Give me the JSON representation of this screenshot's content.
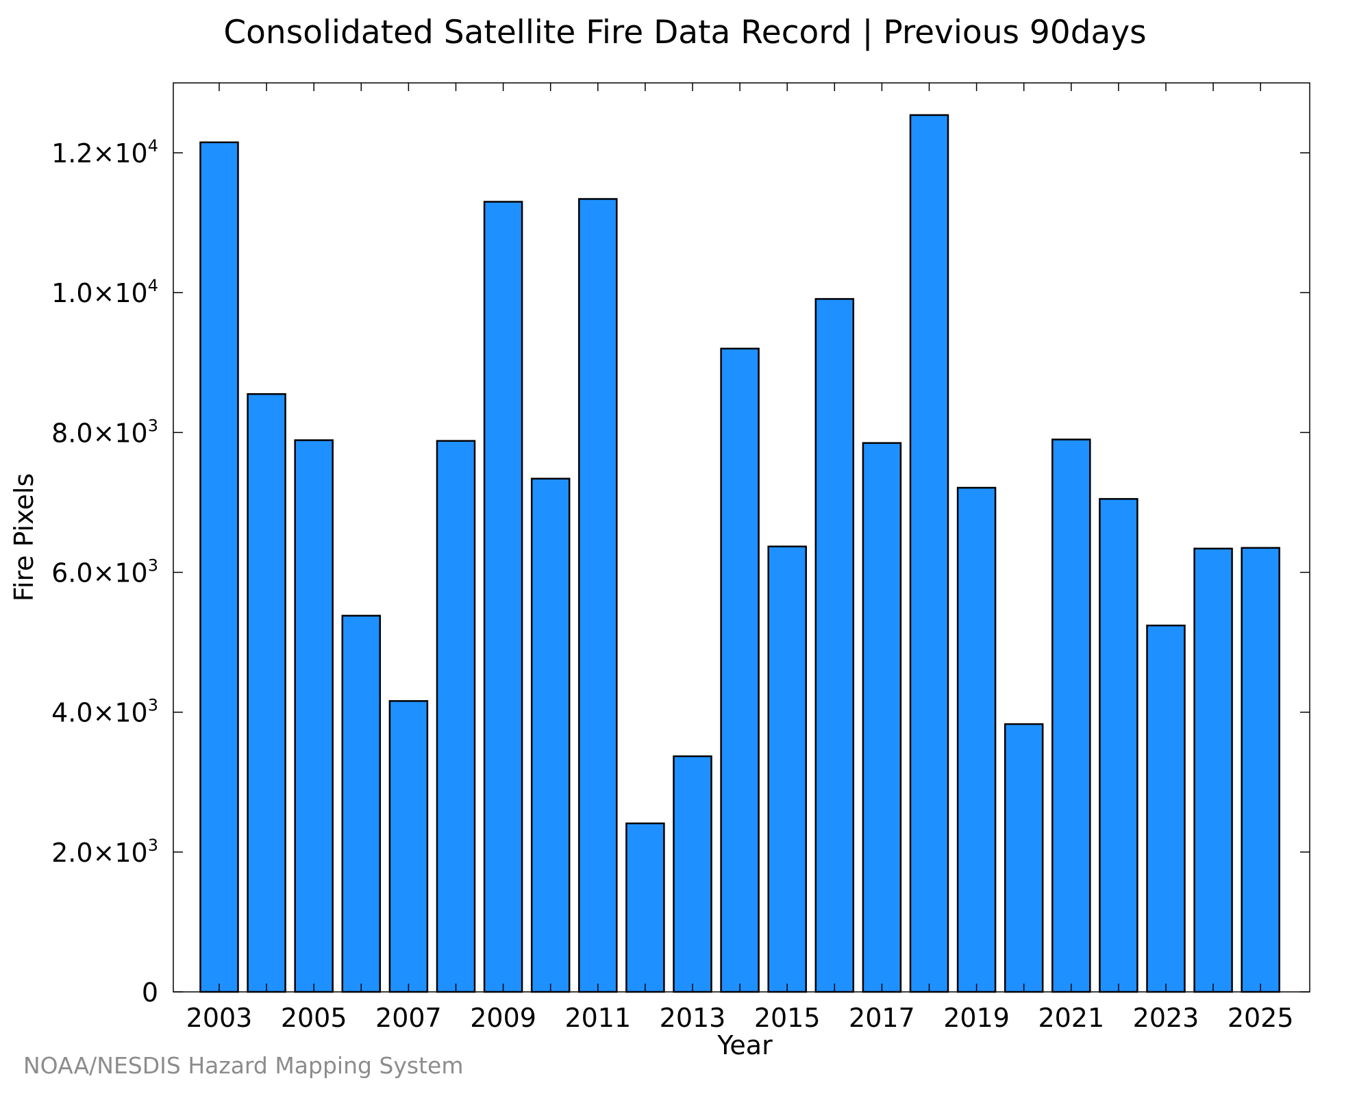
{
  "chart_data": {
    "type": "bar",
    "title": "Consolidated Satellite Fire Data Record | Previous 90days",
    "xlabel": "Year",
    "ylabel": "Fire Pixels",
    "categories": [
      "2003",
      "2004",
      "2005",
      "2006",
      "2007",
      "2008",
      "2009",
      "2010",
      "2011",
      "2012",
      "2013",
      "2014",
      "2015",
      "2016",
      "2017",
      "2018",
      "2019",
      "2020",
      "2021",
      "2022",
      "2023",
      "2024",
      "2025"
    ],
    "values": [
      12150,
      8550,
      7890,
      5380,
      4160,
      7880,
      11300,
      7340,
      11340,
      2410,
      3370,
      9200,
      6370,
      9910,
      7850,
      12540,
      7210,
      3830,
      7900,
      7050,
      5240,
      6340,
      6350
    ],
    "ylim": [
      0,
      13000
    ],
    "yticks": [
      {
        "value": 0,
        "mantissa": "0",
        "exp": ""
      },
      {
        "value": 2000,
        "mantissa": "2.0×10",
        "exp": "3"
      },
      {
        "value": 4000,
        "mantissa": "4.0×10",
        "exp": "3"
      },
      {
        "value": 6000,
        "mantissa": "6.0×10",
        "exp": "3"
      },
      {
        "value": 8000,
        "mantissa": "8.0×10",
        "exp": "3"
      },
      {
        "value": 10000,
        "mantissa": "1.0×10",
        "exp": "4"
      },
      {
        "value": 12000,
        "mantissa": "1.2×10",
        "exp": "4"
      }
    ],
    "xtick_labels": [
      "2003",
      "2005",
      "2007",
      "2009",
      "2011",
      "2013",
      "2015",
      "2017",
      "2019",
      "2021",
      "2023",
      "2025"
    ],
    "bar_color": "#1E90FF",
    "grid": false,
    "legend": "none"
  },
  "credit": "NOAA/NESDIS Hazard Mapping System"
}
